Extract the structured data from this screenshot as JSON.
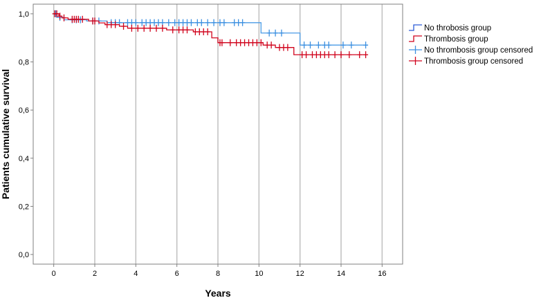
{
  "chart_data": {
    "type": "line",
    "subtype": "kaplan-meier-step",
    "title": "",
    "xlabel": "Years",
    "ylabel": "Patients cumulative survival",
    "xlim": [
      -1,
      17
    ],
    "ylim": [
      -0.04,
      1.04
    ],
    "x_ticks": [
      0,
      2,
      4,
      6,
      8,
      10,
      12,
      14,
      16
    ],
    "x_tick_labels": [
      "0",
      "2",
      "4",
      "6",
      "8",
      "10",
      "12",
      "14",
      "16"
    ],
    "y_ticks": [
      0.0,
      0.2,
      0.4,
      0.6,
      0.8,
      1.0
    ],
    "y_tick_labels": [
      "0,0",
      "0,2",
      "0,4",
      "0,6",
      "0,8",
      "1,0"
    ],
    "grid": "vertical",
    "legend_position": "right",
    "legend": [
      {
        "label": "No throbosis group",
        "kind": "step",
        "color": "#2a5bd7"
      },
      {
        "label": "Thrombosis group",
        "kind": "step",
        "color": "#d0021b"
      },
      {
        "label": "No thrombosis group censored",
        "kind": "censor",
        "color": "#3b8fe0"
      },
      {
        "label": "Thrombosis group censored",
        "kind": "censor",
        "color": "#d0021b"
      }
    ],
    "series": [
      {
        "name": "No throbosis group",
        "line_color": "#4a9be6",
        "censor_color": "#3b8fe0",
        "steps": [
          [
            0,
            1.0
          ],
          [
            0.15,
            0.985
          ],
          [
            0.5,
            0.975
          ],
          [
            1.6,
            0.97
          ],
          [
            2.6,
            0.963
          ],
          [
            10.1,
            0.92
          ],
          [
            12.0,
            0.87
          ],
          [
            15.3,
            0.87
          ]
        ],
        "censored": [
          [
            0.1,
            1.0
          ],
          [
            0.3,
            0.985
          ],
          [
            0.9,
            0.975
          ],
          [
            1.1,
            0.975
          ],
          [
            1.3,
            0.975
          ],
          [
            1.9,
            0.97
          ],
          [
            2.2,
            0.97
          ],
          [
            2.8,
            0.963
          ],
          [
            3.0,
            0.963
          ],
          [
            3.2,
            0.963
          ],
          [
            3.6,
            0.963
          ],
          [
            3.8,
            0.963
          ],
          [
            4.0,
            0.963
          ],
          [
            4.3,
            0.963
          ],
          [
            4.5,
            0.963
          ],
          [
            4.7,
            0.963
          ],
          [
            4.9,
            0.963
          ],
          [
            5.1,
            0.963
          ],
          [
            5.3,
            0.963
          ],
          [
            5.6,
            0.963
          ],
          [
            5.9,
            0.963
          ],
          [
            6.1,
            0.963
          ],
          [
            6.3,
            0.963
          ],
          [
            6.5,
            0.963
          ],
          [
            6.7,
            0.963
          ],
          [
            7.0,
            0.963
          ],
          [
            7.2,
            0.963
          ],
          [
            7.5,
            0.963
          ],
          [
            7.8,
            0.963
          ],
          [
            8.1,
            0.963
          ],
          [
            8.3,
            0.963
          ],
          [
            8.8,
            0.963
          ],
          [
            9.0,
            0.963
          ],
          [
            9.2,
            0.963
          ],
          [
            10.5,
            0.92
          ],
          [
            10.8,
            0.92
          ],
          [
            11.1,
            0.92
          ],
          [
            12.2,
            0.87
          ],
          [
            12.5,
            0.87
          ],
          [
            12.9,
            0.87
          ],
          [
            13.2,
            0.87
          ],
          [
            13.4,
            0.87
          ],
          [
            14.1,
            0.87
          ],
          [
            14.5,
            0.87
          ],
          [
            15.2,
            0.87
          ]
        ]
      },
      {
        "name": "Thrombosis group",
        "line_color": "#d0021b",
        "censor_color": "#d0021b",
        "steps": [
          [
            0,
            1.0
          ],
          [
            0.25,
            0.99
          ],
          [
            0.4,
            0.983
          ],
          [
            0.7,
            0.977
          ],
          [
            1.7,
            0.97
          ],
          [
            2.2,
            0.962
          ],
          [
            2.5,
            0.955
          ],
          [
            3.2,
            0.948
          ],
          [
            3.6,
            0.94
          ],
          [
            5.5,
            0.933
          ],
          [
            6.8,
            0.925
          ],
          [
            7.7,
            0.9
          ],
          [
            8.0,
            0.88
          ],
          [
            10.2,
            0.87
          ],
          [
            10.8,
            0.86
          ],
          [
            11.7,
            0.83
          ],
          [
            15.3,
            0.83
          ]
        ],
        "censored": [
          [
            0.05,
            1.0
          ],
          [
            0.15,
            1.0
          ],
          [
            0.3,
            0.99
          ],
          [
            0.5,
            0.983
          ],
          [
            0.9,
            0.977
          ],
          [
            1.0,
            0.977
          ],
          [
            1.1,
            0.977
          ],
          [
            1.2,
            0.977
          ],
          [
            1.4,
            0.977
          ],
          [
            1.9,
            0.97
          ],
          [
            2.0,
            0.97
          ],
          [
            2.6,
            0.955
          ],
          [
            2.8,
            0.955
          ],
          [
            3.0,
            0.955
          ],
          [
            3.4,
            0.948
          ],
          [
            3.8,
            0.94
          ],
          [
            4.1,
            0.94
          ],
          [
            4.4,
            0.94
          ],
          [
            4.7,
            0.94
          ],
          [
            5.0,
            0.94
          ],
          [
            5.3,
            0.94
          ],
          [
            5.8,
            0.933
          ],
          [
            6.1,
            0.933
          ],
          [
            6.3,
            0.933
          ],
          [
            6.5,
            0.933
          ],
          [
            6.9,
            0.925
          ],
          [
            7.1,
            0.925
          ],
          [
            7.3,
            0.925
          ],
          [
            7.5,
            0.925
          ],
          [
            8.1,
            0.88
          ],
          [
            8.2,
            0.88
          ],
          [
            8.6,
            0.88
          ],
          [
            8.9,
            0.88
          ],
          [
            9.1,
            0.88
          ],
          [
            9.3,
            0.88
          ],
          [
            9.5,
            0.88
          ],
          [
            9.7,
            0.88
          ],
          [
            9.9,
            0.88
          ],
          [
            10.1,
            0.88
          ],
          [
            10.4,
            0.87
          ],
          [
            10.6,
            0.87
          ],
          [
            11.0,
            0.86
          ],
          [
            11.2,
            0.86
          ],
          [
            11.4,
            0.86
          ],
          [
            12.1,
            0.83
          ],
          [
            12.3,
            0.83
          ],
          [
            12.6,
            0.83
          ],
          [
            12.8,
            0.83
          ],
          [
            13.0,
            0.83
          ],
          [
            13.2,
            0.83
          ],
          [
            13.4,
            0.83
          ],
          [
            13.7,
            0.83
          ],
          [
            14.0,
            0.83
          ],
          [
            14.4,
            0.83
          ],
          [
            14.9,
            0.83
          ],
          [
            15.2,
            0.83
          ]
        ]
      }
    ]
  }
}
